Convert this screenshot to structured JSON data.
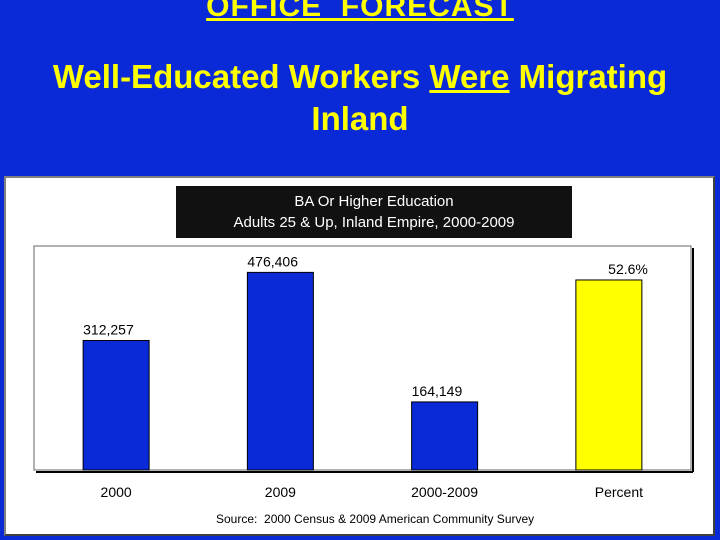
{
  "slide": {
    "header_title": "OFFICE  FORECAST",
    "headline_line1_pre": "Well-Educated Workers ",
    "headline_line1_emph": "Were",
    "headline_line1_post": " Migrating",
    "headline_line2": "Inland"
  },
  "colors": {
    "background": "#0a2ad8",
    "headline": "#ffff00",
    "bar_blue": "#0a2ad8",
    "bar_yellow": "#ffff00"
  },
  "chart_data": {
    "type": "bar",
    "title_line1": "BA Or Higher Education",
    "title_line2": "Adults 25 & Up, Inland Empire, 2000-2009",
    "categories": [
      "2000",
      "2009",
      "2000-2009",
      "Percent"
    ],
    "values": [
      312257,
      476406,
      164149,
      52.6
    ],
    "data_labels": [
      "312,257",
      "476,406",
      "164,149",
      "52.6%"
    ],
    "bar_colors": [
      "#0a2ad8",
      "#0a2ad8",
      "#0a2ad8",
      "#ffff00"
    ],
    "grid": false,
    "legend": "none",
    "source": "Source:  2000 Census & 2009 American Community Survey"
  }
}
